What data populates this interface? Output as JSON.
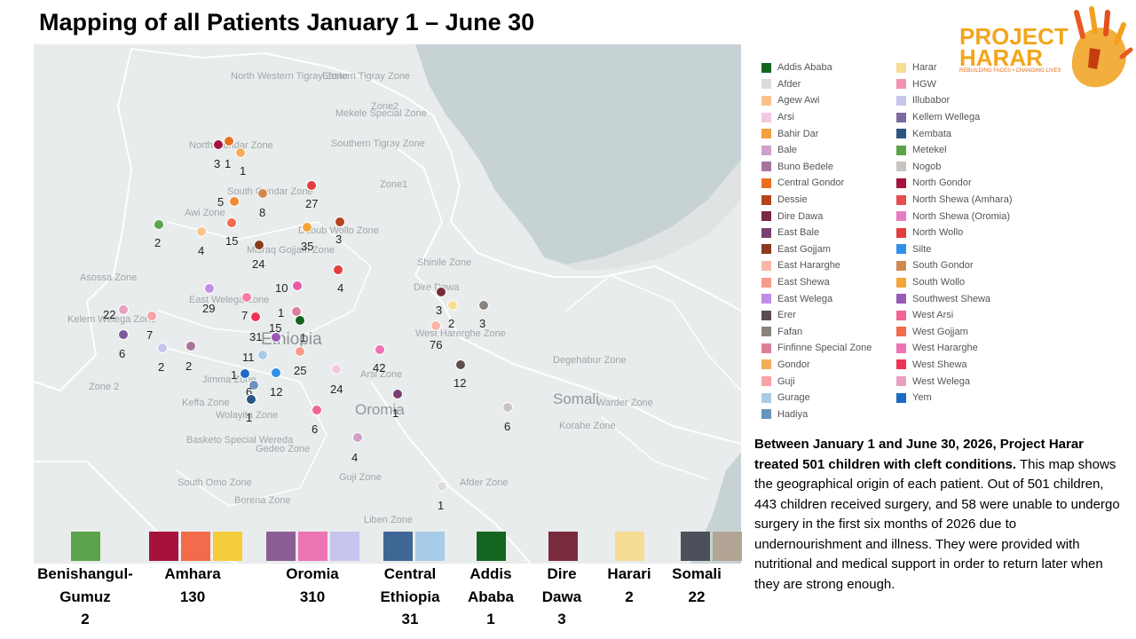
{
  "title": "Mapping of all Patients January 1 – June 30",
  "logo": {
    "line1": "PROJECT",
    "line2": "HARAR",
    "tagline": "REBUILDING FACES • CHANGING LIVES"
  },
  "map_labels": [
    {
      "text": "North Western Tigray Zone",
      "kind": "small"
    },
    {
      "text": "Eastern Tigray Zone",
      "kind": "small"
    },
    {
      "text": "Mekele Special Zone",
      "kind": "small"
    },
    {
      "text": "Zone2",
      "kind": "small"
    },
    {
      "text": "Southern Tigray Zone",
      "kind": "small"
    },
    {
      "text": "North Gondar Zone",
      "kind": "small"
    },
    {
      "text": "South Gondar Zone",
      "kind": "small"
    },
    {
      "text": "Zone1",
      "kind": "small"
    },
    {
      "text": "Awi Zone",
      "kind": "small"
    },
    {
      "text": "Debub Wollo Zone",
      "kind": "small"
    },
    {
      "text": "Misraq Gojjam Zone",
      "kind": "small"
    },
    {
      "text": "Shinile Zone",
      "kind": "small"
    },
    {
      "text": "Asossa Zone",
      "kind": "small"
    },
    {
      "text": "East Welega Zone",
      "kind": "small"
    },
    {
      "text": "Dire Dawa",
      "kind": "small"
    },
    {
      "text": "Kelem Welega Zone",
      "kind": "small"
    },
    {
      "text": "West Harerghe Zone",
      "kind": "small"
    },
    {
      "text": "Ethiopia",
      "kind": "country"
    },
    {
      "text": "Jimma Zone",
      "kind": "small"
    },
    {
      "text": "Arsi Zone",
      "kind": "small"
    },
    {
      "text": "Degehabur Zone",
      "kind": "small"
    },
    {
      "text": "Zone 2",
      "kind": "small"
    },
    {
      "text": "Keffa Zone",
      "kind": "small"
    },
    {
      "text": "Wolayita Zone",
      "kind": "small"
    },
    {
      "text": "Somali",
      "kind": "big"
    },
    {
      "text": "Warder Zone",
      "kind": "small"
    },
    {
      "text": "Oromia",
      "kind": "big"
    },
    {
      "text": "Korahe Zone",
      "kind": "small"
    },
    {
      "text": "Basketo Special Wereda",
      "kind": "small"
    },
    {
      "text": "Gedeo Zone",
      "kind": "small"
    },
    {
      "text": "South Omo Zone",
      "kind": "small"
    },
    {
      "text": "Guji Zone",
      "kind": "small"
    },
    {
      "text": "Afder Zone",
      "kind": "small"
    },
    {
      "text": "Borena Zone",
      "kind": "small"
    },
    {
      "text": "Liben Zone",
      "kind": "small"
    }
  ],
  "points": [
    {
      "color": "#a6123b",
      "count": "3"
    },
    {
      "color": "#e96f1d",
      "count": "1"
    },
    {
      "color": "#f2ad5a",
      "count": "1"
    },
    {
      "color": "#e43d3d",
      "count": "27"
    },
    {
      "color": "#f08a2e",
      "count": "5"
    },
    {
      "color": "#d08a4f",
      "count": "8"
    },
    {
      "color": "#5ba44c",
      "count": "2"
    },
    {
      "color": "#fbc38b",
      "count": "4"
    },
    {
      "color": "#f26b4a",
      "count": "15"
    },
    {
      "color": "#8b3a1e",
      "count": "24"
    },
    {
      "color": "#f4a539",
      "count": "35"
    },
    {
      "color": "#b5441d",
      "count": "3"
    },
    {
      "color": "#e63d3d",
      "count": "4"
    },
    {
      "color": "#e45aa5",
      "count": "10"
    },
    {
      "color": "#c28de8",
      "count": "29"
    },
    {
      "color": "#f47da0",
      "count": "7"
    },
    {
      "color": "#dd7f99",
      "count": "1"
    },
    {
      "color": "#13651f",
      "count": "1"
    },
    {
      "color": "#7a2a3d",
      "count": "3"
    },
    {
      "color": "#f7dc96",
      "count": "2"
    },
    {
      "color": "#8a847e",
      "count": "3"
    },
    {
      "color": "#e9a0c1",
      "count": "22"
    },
    {
      "color": "#f8a2a8",
      "count": "7"
    },
    {
      "color": "#ee3455",
      "count": "31"
    },
    {
      "color": "#9b59b6",
      "count": "15"
    },
    {
      "color": "#fbb6a8",
      "count": "76"
    },
    {
      "color": "#7d5a9e",
      "count": "6"
    },
    {
      "color": "#c7c4ee",
      "count": "2"
    },
    {
      "color": "#a6749b",
      "count": "2"
    },
    {
      "color": "#a8cbe8",
      "count": "11"
    },
    {
      "color": "#f79a8b",
      "count": "25"
    },
    {
      "color": "#ec74b4",
      "count": "42"
    },
    {
      "color": "#1d6bc7",
      "count": "1"
    },
    {
      "color": "#2f8fe9",
      "count": "12"
    },
    {
      "color": "#f4c7e0",
      "count": "24"
    },
    {
      "color": "#6b93bf",
      "count": "6"
    },
    {
      "color": "#5d4d4f",
      "count": "12"
    },
    {
      "color": "#2a5583",
      "count": "1"
    },
    {
      "color": "#7a3f6f",
      "count": "1"
    },
    {
      "color": "#f06591",
      "count": "6"
    },
    {
      "color": "#c9c4c0",
      "count": "6"
    },
    {
      "color": "#cfa0c9",
      "count": "4"
    },
    {
      "color": "#dcdcdc",
      "count": "1"
    }
  ],
  "legend": {
    "col1": [
      {
        "label": "Addis Ababa",
        "color": "#13651f"
      },
      {
        "label": "Afder",
        "color": "#dcdcdc"
      },
      {
        "label": "Agew Awi",
        "color": "#fbc38b"
      },
      {
        "label": "Arsi",
        "color": "#f4c7e0"
      },
      {
        "label": "Bahir Dar",
        "color": "#f2a040"
      },
      {
        "label": "Bale",
        "color": "#cfa0c9"
      },
      {
        "label": "Buno Bedele",
        "color": "#a6749b"
      },
      {
        "label": "Central Gondor",
        "color": "#e96f1d"
      },
      {
        "label": "Dessie",
        "color": "#b5441d"
      },
      {
        "label": "Dire Dawa",
        "color": "#7a2a3d"
      },
      {
        "label": "East Bale",
        "color": "#7a3f6f"
      },
      {
        "label": "East Gojjam",
        "color": "#8b3a1e"
      },
      {
        "label": "East Hararghe",
        "color": "#fbb6a8"
      },
      {
        "label": "East Shewa",
        "color": "#f79a8b"
      },
      {
        "label": "East Welega",
        "color": "#c28de8"
      },
      {
        "label": "Erer",
        "color": "#5d4d4f"
      },
      {
        "label": "Fafan",
        "color": "#8a847e"
      },
      {
        "label": "Finfinne Special Zone",
        "color": "#dd7f99"
      },
      {
        "label": "Gondor",
        "color": "#f2ad5a"
      },
      {
        "label": "Guji",
        "color": "#f8a2a8"
      },
      {
        "label": "Gurage",
        "color": "#a8cbe8"
      },
      {
        "label": "Hadiya",
        "color": "#6b93bf"
      }
    ],
    "col2": [
      {
        "label": "Harar",
        "color": "#f7dc96"
      },
      {
        "label": "HGW",
        "color": "#f391b4"
      },
      {
        "label": "Illubabor",
        "color": "#c7c4ee"
      },
      {
        "label": "Kellem Wellega",
        "color": "#7d6aa3"
      },
      {
        "label": "Kembata",
        "color": "#2a5583"
      },
      {
        "label": "Metekel",
        "color": "#5ba44c"
      },
      {
        "label": "Nogob",
        "color": "#c9c4c0"
      },
      {
        "label": "North Gondor",
        "color": "#a6123b"
      },
      {
        "label": "North Shewa (Amhara)",
        "color": "#e84c4c"
      },
      {
        "label": "North Shewa (Oromia)",
        "color": "#e87ac0"
      },
      {
        "label": "North Wollo",
        "color": "#e43d3d"
      },
      {
        "label": "Silte",
        "color": "#2f8fe9"
      },
      {
        "label": "South Gondor",
        "color": "#d08a4f"
      },
      {
        "label": "South Wollo",
        "color": "#f4a539"
      },
      {
        "label": "Southwest Shewa",
        "color": "#9b59b6"
      },
      {
        "label": "West Arsi",
        "color": "#f06591"
      },
      {
        "label": "West Gojjam",
        "color": "#f26b4a"
      },
      {
        "label": "West Hararghe",
        "color": "#ec74b4"
      },
      {
        "label": "West Shewa",
        "color": "#ee3455"
      },
      {
        "label": "West Welega",
        "color": "#e9a0c1"
      },
      {
        "label": "Yem",
        "color": "#1d6bc7"
      }
    ]
  },
  "description": {
    "bold": "Between January 1 and June 30, 2026, Project Harar treated 501 children with cleft conditions.",
    "body": " This map shows the geographical origin of each patient. Out of 501 children, 443 children received surgery, and 58 were unable to undergo surgery in the first six months of 2026 due to undernourishment and illness. They were provided with nutritional and medical support in order to return later when they are strong enough."
  },
  "regions": [
    {
      "label": "Benishangul-\nGumuz\n2",
      "colors": [
        "#5ba44c"
      ]
    },
    {
      "label": "Amhara\n130",
      "colors": [
        "#a6123b",
        "#f26b4a",
        "#f5cc3b"
      ]
    },
    {
      "label": "Oromia\n310",
      "colors": [
        "#8c5d94",
        "#ec74b4",
        "#c7c4ee"
      ]
    },
    {
      "label": "Central\nEthiopia\n31",
      "colors": [
        "#3f6795",
        "#a8cbe8"
      ]
    },
    {
      "label": "Addis\nAbaba\n1",
      "colors": [
        "#13651f"
      ]
    },
    {
      "label": "Dire\nDawa\n3",
      "colors": [
        "#7a2a3d"
      ]
    },
    {
      "label": "Harari\n2",
      "colors": [
        "#f7dc96"
      ]
    },
    {
      "label": "Somali\n22",
      "colors": [
        "#4c505a",
        "#b2a595"
      ]
    }
  ]
}
